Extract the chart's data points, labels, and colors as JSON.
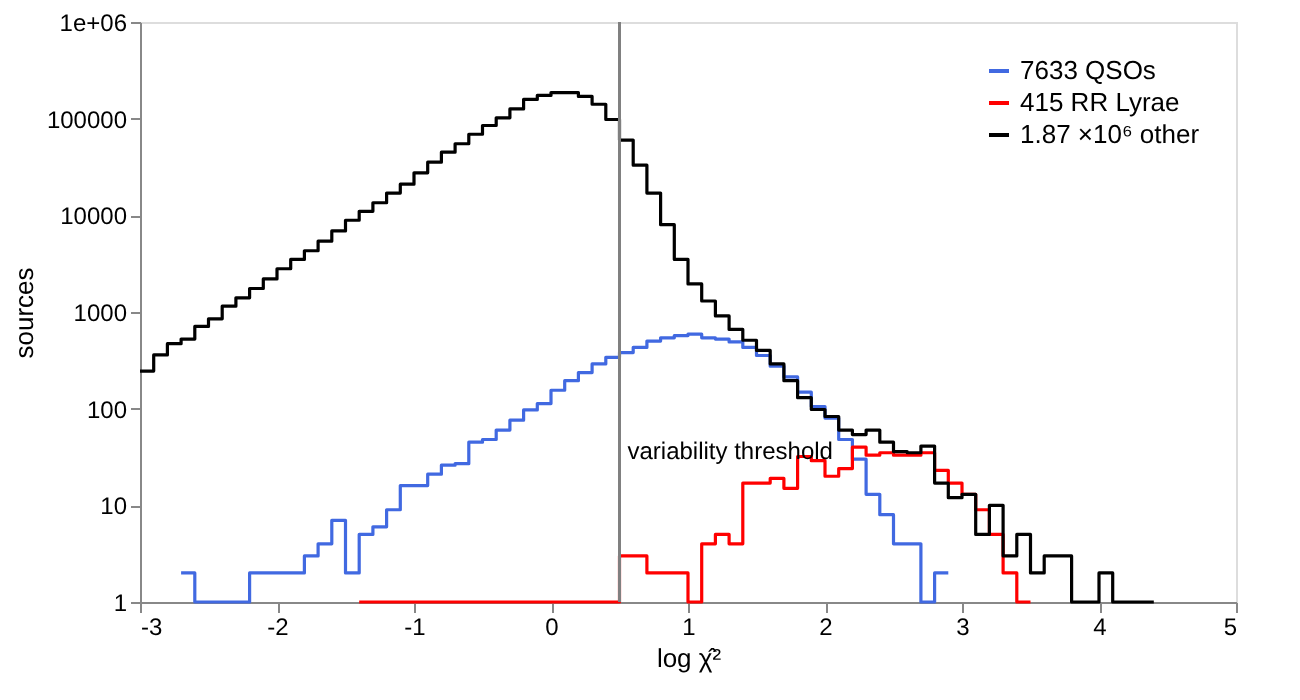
{
  "chart_data": {
    "type": "histogram",
    "xlabel": "log χ̂²",
    "ylabel": "sources",
    "bins": [
      -3.0,
      -2.9,
      -2.8,
      -2.7,
      -2.6,
      -2.5,
      -2.4,
      -2.3,
      -2.2,
      -2.1,
      -2.0,
      -1.9,
      -1.8,
      -1.7,
      -1.6,
      -1.5,
      -1.4,
      -1.3,
      -1.2,
      -1.1,
      -1.0,
      -0.9,
      -0.8,
      -0.7,
      -0.6,
      -0.5,
      -0.4,
      -0.3,
      -0.2,
      -0.1,
      0.0,
      0.1,
      0.2,
      0.3,
      0.4,
      0.5,
      0.6,
      0.7,
      0.8,
      0.9,
      1.0,
      1.1,
      1.2,
      1.3,
      1.4,
      1.5,
      1.6,
      1.7,
      1.8,
      1.9,
      2.0,
      2.1,
      2.2,
      2.3,
      2.4,
      2.5,
      2.6,
      2.7,
      2.8,
      2.9,
      3.0,
      3.1,
      3.2,
      3.3,
      3.4,
      3.5,
      3.6,
      3.7,
      3.8,
      3.9,
      4.0,
      4.1,
      4.2,
      4.3,
      4.4
    ],
    "series": [
      {
        "name": "7633 QSOs",
        "color": "#4169e1",
        "bins": [
          -2.7,
          -2.6,
          -2.5,
          -2.4,
          -2.3,
          -2.2,
          -2.1,
          -2.0,
          -1.9,
          -1.8,
          -1.7,
          -1.6,
          -1.5,
          -1.4,
          -1.3,
          -1.2,
          -1.1,
          -1.0,
          -0.9,
          -0.8,
          -0.7,
          -0.6,
          -0.5,
          -0.4,
          -0.3,
          -0.2,
          -0.1,
          0.0,
          0.1,
          0.2,
          0.3,
          0.4,
          0.5,
          0.6,
          0.7,
          0.8,
          0.9,
          1.0,
          1.1,
          1.2,
          1.3,
          1.4,
          1.5,
          1.6,
          1.7,
          1.8,
          1.9,
          2.0,
          2.1,
          2.2,
          2.3,
          2.4,
          2.5,
          2.6,
          2.7,
          2.8,
          2.9
        ],
        "values": [
          2,
          1,
          1,
          1,
          1,
          2,
          2,
          2,
          2,
          3,
          4,
          7,
          2,
          5,
          6,
          9,
          16,
          16,
          21,
          26,
          27,
          45,
          48,
          60,
          76,
          97,
          113,
          155,
          195,
          236,
          290,
          340,
          380,
          430,
          500,
          540,
          570,
          590,
          540,
          525,
          490,
          430,
          355,
          275,
          213,
          148,
          105,
          80,
          48,
          30,
          13,
          8,
          4,
          4,
          1,
          2
        ]
      },
      {
        "name": "415 RR Lyrae",
        "color": "#ff0000",
        "bins": [
          -1.4,
          -1.3,
          -1.2,
          -1.1,
          -1.0,
          -0.9,
          -0.8,
          -0.7,
          -0.6,
          -0.5,
          -0.4,
          -0.3,
          -0.2,
          -0.1,
          0.0,
          0.1,
          0.2,
          0.3,
          0.4,
          0.5,
          0.6,
          0.7,
          0.8,
          0.9,
          1.0,
          1.1,
          1.2,
          1.3,
          1.4,
          1.5,
          1.6,
          1.7,
          1.8,
          1.9,
          2.0,
          2.1,
          2.2,
          2.3,
          2.4,
          2.5,
          2.6,
          2.7,
          2.8,
          2.9,
          3.0,
          3.1,
          3.2,
          3.3,
          3.4,
          3.5
        ],
        "values": [
          1,
          1,
          1,
          1,
          1,
          1,
          1,
          1,
          1,
          1,
          1,
          1,
          1,
          1,
          1,
          1,
          1,
          1,
          1,
          3,
          3,
          2,
          2,
          2,
          1,
          4,
          5,
          4,
          17,
          17,
          19,
          15,
          32,
          29,
          20,
          24,
          40,
          33,
          35,
          33,
          33,
          35,
          23,
          17,
          13,
          9,
          5,
          2,
          1
        ]
      },
      {
        "name": "1.87 ×10⁶ other",
        "color": "#000000",
        "values": [
          245,
          360,
          470,
          525,
          710,
          850,
          1150,
          1400,
          1750,
          2200,
          2800,
          3500,
          4300,
          5400,
          6900,
          8900,
          11000,
          13500,
          17000,
          21000,
          27500,
          35500,
          45000,
          55000,
          69000,
          85000,
          102000,
          126000,
          158000,
          174000,
          186000,
          186000,
          170000,
          141000,
          98000,
          60000,
          33000,
          17000,
          8000,
          3500,
          1950,
          1300,
          910,
          660,
          510,
          400,
          290,
          195,
          130,
          98,
          83,
          60,
          54,
          60,
          45,
          36,
          35,
          41,
          17,
          12,
          13,
          5,
          10,
          3,
          5,
          2,
          3,
          3,
          1,
          1,
          2,
          1,
          1,
          1
        ]
      }
    ],
    "xlim": [
      -3,
      5
    ],
    "xticks": [
      -3,
      -2,
      -1,
      0,
      1,
      2,
      3,
      4,
      5
    ],
    "ylim": [
      1,
      1000000
    ],
    "yticks": [
      1,
      10,
      100,
      1000,
      10000,
      100000,
      {
        "value": 1000000,
        "label": "1e+06"
      }
    ],
    "log": "y",
    "grid": false,
    "legend": "top right",
    "ref_lines": [
      {
        "axis": "x",
        "value": 0.5,
        "label": "variability threshold",
        "color": "#808080"
      }
    ]
  }
}
